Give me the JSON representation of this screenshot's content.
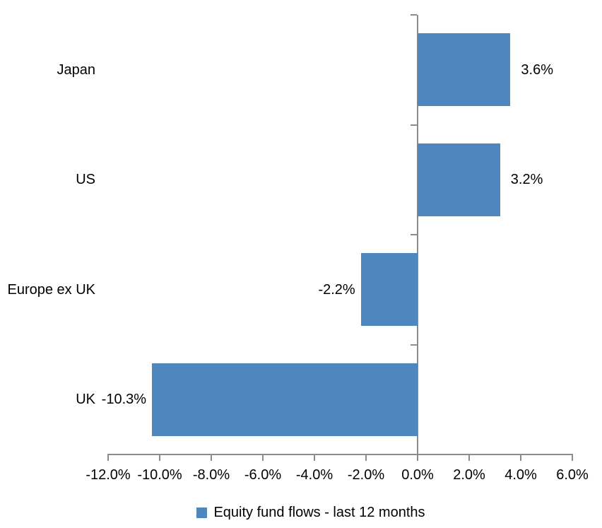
{
  "chart_data": {
    "type": "bar",
    "orientation": "horizontal",
    "title": "",
    "categories": [
      "Japan",
      "US",
      "Europe ex UK",
      "UK"
    ],
    "series": [
      {
        "name": "Equity fund flows - last 12 months",
        "values": [
          3.6,
          3.2,
          -2.2,
          -10.3
        ],
        "data_labels": [
          "3.6%",
          "3.2%",
          "-2.2%",
          "-10.3%"
        ],
        "color": "#4d87be"
      }
    ],
    "xlim": [
      -12,
      6
    ],
    "x_ticks": {
      "values": [
        -12,
        -10,
        -8,
        -6,
        -4,
        -2,
        0,
        2,
        4,
        6
      ],
      "labels": [
        "-12.0%",
        "-10.0%",
        "-8.0%",
        "-6.0%",
        "-4.0%",
        "-2.0%",
        "0.0%",
        "2.0%",
        "4.0%",
        "6.0%"
      ]
    },
    "grid": false,
    "legend_position": "bottom",
    "axis_color": "#8b8b8b",
    "text_color": "#000000",
    "background": "#ffffff"
  }
}
